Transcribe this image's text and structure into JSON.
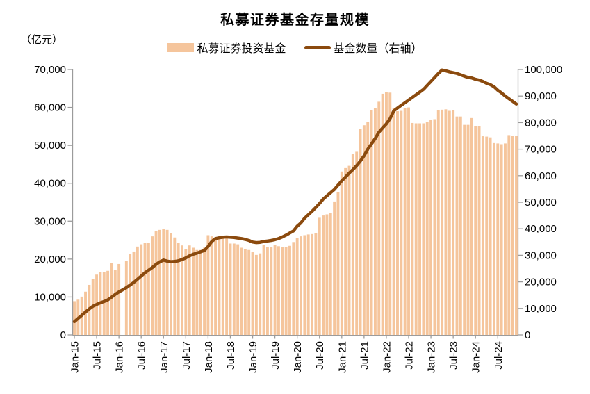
{
  "title": "私募证券基金存量规模",
  "y_left_unit_label": "（亿元）",
  "legend": [
    {
      "label": "私募证券投资基金",
      "type": "bar",
      "color": "#F5C59C"
    },
    {
      "label": "基金数量（右轴）",
      "type": "line",
      "color": "#8B4A0E"
    }
  ],
  "colors": {
    "bar": "#F5C59C",
    "line": "#8B4A0E",
    "axis": "#9B9B9B",
    "text": "#000000"
  },
  "chart_data": {
    "type": "bar+line combo, monthly Jan-2015 to Dec-2024",
    "title": "私募证券基金存量规模",
    "x": [
      "Jan-15",
      "Feb-15",
      "Mar-15",
      "Apr-15",
      "May-15",
      "Jun-15",
      "Jul-15",
      "Aug-15",
      "Sep-15",
      "Oct-15",
      "Nov-15",
      "Dec-15",
      "Jan-16",
      "Feb-16",
      "Mar-16",
      "Apr-16",
      "May-16",
      "Jun-16",
      "Jul-16",
      "Aug-16",
      "Sep-16",
      "Oct-16",
      "Nov-16",
      "Dec-16",
      "Jan-17",
      "Feb-17",
      "Mar-17",
      "Apr-17",
      "May-17",
      "Jun-17",
      "Jul-17",
      "Aug-17",
      "Sep-17",
      "Oct-17",
      "Nov-17",
      "Dec-17",
      "Jan-18",
      "Feb-18",
      "Mar-18",
      "Apr-18",
      "May-18",
      "Jun-18",
      "Jul-18",
      "Aug-18",
      "Sep-18",
      "Oct-18",
      "Nov-18",
      "Dec-18",
      "Jan-19",
      "Feb-19",
      "Mar-19",
      "Apr-19",
      "May-19",
      "Jun-19",
      "Jul-19",
      "Aug-19",
      "Sep-19",
      "Oct-19",
      "Nov-19",
      "Dec-19",
      "Jan-20",
      "Feb-20",
      "Mar-20",
      "Apr-20",
      "May-20",
      "Jun-20",
      "Jul-20",
      "Aug-20",
      "Sep-20",
      "Oct-20",
      "Nov-20",
      "Dec-20",
      "Jan-21",
      "Feb-21",
      "Mar-21",
      "Apr-21",
      "May-21",
      "Jun-21",
      "Jul-21",
      "Aug-21",
      "Sep-21",
      "Oct-21",
      "Nov-21",
      "Dec-21",
      "Jan-22",
      "Feb-22",
      "Mar-22",
      "Apr-22",
      "May-22",
      "Jun-22",
      "Jul-22",
      "Aug-22",
      "Sep-22",
      "Oct-22",
      "Nov-22",
      "Dec-22",
      "Jan-23",
      "Feb-23",
      "Mar-23",
      "Apr-23",
      "May-23",
      "Jun-23",
      "Jul-23",
      "Aug-23",
      "Sep-23",
      "Oct-23",
      "Nov-23",
      "Dec-23",
      "Jan-24",
      "Feb-24",
      "Mar-24",
      "Apr-24",
      "May-24",
      "Jun-24",
      "Jul-24",
      "Aug-24",
      "Sep-24",
      "Oct-24",
      "Nov-24",
      "Dec-24"
    ],
    "x_tick_labels": [
      "Jan-15",
      "Jul-15",
      "Jan-16",
      "Jul-16",
      "Jan-17",
      "Jul-17",
      "Jan-18",
      "Jul-18",
      "Jan-19",
      "Jul-19",
      "Jan-20",
      "Jul-20",
      "Jan-21",
      "Jul-21",
      "Jan-22",
      "Jul-22",
      "Jan-23",
      "Jul-23",
      "Jan-24",
      "Jul-24"
    ],
    "series": [
      {
        "name": "私募证券投资基金",
        "type": "bar",
        "axis": "left",
        "unit": "亿元",
        "color": "#F5C59C",
        "values": [
          8900,
          9300,
          10100,
          11400,
          13200,
          14700,
          15900,
          16500,
          16600,
          16900,
          19000,
          17200,
          18700,
          null,
          19600,
          21400,
          22000,
          23300,
          23900,
          24200,
          24200,
          26000,
          27400,
          27700,
          28000,
          27700,
          26900,
          25700,
          24200,
          23600,
          22700,
          23600,
          23000,
          22400,
          22400,
          23000,
          26300,
          26000,
          25700,
          25700,
          25400,
          25400,
          24100,
          24100,
          23900,
          23000,
          22600,
          22400,
          21800,
          21100,
          21500,
          23800,
          23200,
          23200,
          23800,
          23400,
          23200,
          23200,
          23500,
          24500,
          25500,
          26000,
          26300,
          26500,
          26600,
          26900,
          30900,
          31500,
          31800,
          32100,
          35200,
          37700,
          43100,
          44000,
          44600,
          47700,
          48300,
          54400,
          55300,
          56200,
          59300,
          59900,
          61500,
          63600,
          64000,
          63900,
          59900,
          59000,
          59100,
          59900,
          60000,
          55900,
          55800,
          55800,
          55800,
          56200,
          56700,
          56900,
          59300,
          59400,
          59500,
          59100,
          59200,
          57600,
          57600,
          55400,
          55400,
          57200,
          55100,
          55100,
          52400,
          52300,
          52100,
          50600,
          50500,
          50300,
          50500,
          52700,
          52500,
          52500
        ]
      },
      {
        "name": "基金数量（右轴）",
        "type": "line",
        "axis": "right",
        "unit": "只",
        "color": "#8B4A0E",
        "values": [
          5000,
          6200,
          7400,
          8600,
          9800,
          10800,
          11500,
          12100,
          12600,
          13200,
          14200,
          15300,
          16200,
          17000,
          17800,
          18800,
          19800,
          21000,
          22200,
          23400,
          24400,
          25400,
          26600,
          27500,
          28200,
          27800,
          27600,
          27700,
          27900,
          28400,
          29000,
          29800,
          30400,
          30800,
          31300,
          31800,
          33300,
          35200,
          36300,
          36600,
          36800,
          36900,
          36800,
          36700,
          36500,
          36300,
          36000,
          35600,
          35000,
          34800,
          34900,
          35200,
          35400,
          35600,
          35900,
          36300,
          36900,
          37600,
          38400,
          39200,
          41000,
          42200,
          44000,
          45300,
          46600,
          48000,
          49500,
          51200,
          52400,
          53600,
          54800,
          56500,
          58100,
          59500,
          61000,
          62300,
          63800,
          65500,
          67500,
          70000,
          72000,
          74000,
          76400,
          78000,
          79500,
          81500,
          84400,
          85500,
          86500,
          87500,
          88500,
          89500,
          90500,
          91500,
          92500,
          94000,
          95500,
          97000,
          98500,
          99800,
          99500,
          99100,
          98800,
          98500,
          98000,
          97500,
          97000,
          96800,
          96300,
          96000,
          95500,
          94800,
          94300,
          93500,
          92200,
          91200,
          90000,
          89000,
          88000,
          87000
        ]
      }
    ],
    "left_axis": {
      "min": 0,
      "max": 70000,
      "step": 10000,
      "tick_labels": [
        "0",
        "10,000",
        "20,000",
        "30,000",
        "40,000",
        "50,000",
        "60,000",
        "70,000"
      ]
    },
    "right_axis": {
      "min": 0,
      "max": 100000,
      "step": 10000,
      "tick_labels": [
        "0",
        "10,000",
        "20,000",
        "30,000",
        "40,000",
        "50,000",
        "60,000",
        "70,000",
        "80,000",
        "90,000",
        "100,000"
      ]
    },
    "grid": "off",
    "legend_position": "top-center",
    "note": "Feb-16 bar value is missing (gap shown in chart)"
  }
}
